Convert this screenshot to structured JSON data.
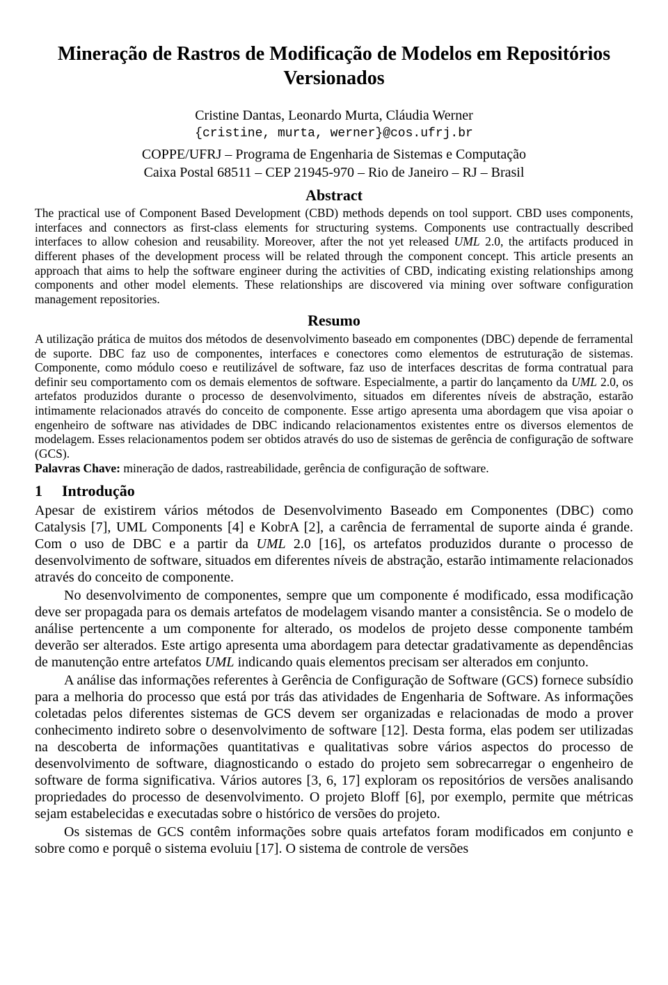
{
  "colors": {
    "text": "#000000",
    "background": "#ffffff"
  },
  "typography": {
    "body_font": "Times New Roman",
    "mono_font": "Courier New",
    "title_size_pt": 21,
    "author_size_pt": 15,
    "heading_size_pt": 16,
    "abstract_size_pt": 13,
    "body_size_pt": 15
  },
  "title": "Mineração de Rastros de Modificação de Modelos em Repositórios Versionados",
  "authors": "Cristine Dantas, Leonardo Murta, Cláudia Werner",
  "emails": "{cristine, murta, werner}@cos.ufrj.br",
  "affiliation": {
    "line1": "COPPE/UFRJ – Programa de Engenharia de Sistemas e Computação",
    "line2": "Caixa Postal 68511 – CEP 21945-970 – Rio de Janeiro – RJ – Brasil"
  },
  "abstract": {
    "heading": "Abstract",
    "text_before_italic": "The practical use of Component Based Development (CBD) methods depends on tool support. CBD uses components, interfaces and connectors as first-class elements for structuring systems. Components use contractually described interfaces to allow cohesion and reusability. Moreover, after the not yet released ",
    "italic1": "UML",
    "text_after_italic": " 2.0, the artifacts produced in different phases of the development process will be related through the component concept. This article presents an approach that aims to help the software engineer during the activities of CBD, indicating existing relationships among components and other model elements. These relationships are discovered via mining over software configuration management repositories."
  },
  "resumo": {
    "heading": "Resumo",
    "text_before_italic": "A utilização prática de muitos dos métodos de desenvolvimento baseado em componentes (DBC) depende de ferramental de suporte. DBC faz uso de componentes, interfaces e conectores como elementos de estruturação de sistemas. Componente, como módulo coeso e reutilizável de software, faz uso de interfaces descritas de forma contratual para definir seu comportamento com os demais elementos de software. Especialmente, a partir do lançamento da ",
    "italic1": "UML",
    "text_after_italic": " 2.0, os artefatos produzidos durante o processo de desenvolvimento, situados em diferentes níveis de abstração, estarão intimamente relacionados através do conceito de componente. Esse artigo apresenta uma abordagem que visa apoiar o engenheiro de software nas atividades de DBC indicando relacionamentos existentes entre os diversos elementos de modelagem. Esses relacionamentos podem ser obtidos através do uso de sistemas de gerência de configuração de software (GCS)."
  },
  "keywords": {
    "label": "Palavras Chave: ",
    "text": "mineração de dados, rastreabilidade, gerência de configuração de software."
  },
  "section1": {
    "number": "1",
    "title": "Introdução",
    "para1_before": "Apesar de existirem vários métodos de Desenvolvimento Baseado em Componentes (DBC) como Catalysis [7], UML Components [4] e KobrA [2], a carência de ferramental de suporte ainda é grande. Com o uso de DBC e a partir da ",
    "para1_italic": "UML",
    "para1_after": " 2.0 [16], os artefatos produzidos durante o processo de desenvolvimento de software, situados em diferentes níveis de abstração, estarão intimamente relacionados através do conceito de componente.",
    "para2_before": "No desenvolvimento de componentes, sempre que um componente é modificado, essa modificação deve ser propagada para os demais artefatos de modelagem visando manter a consistência. Se o modelo de análise pertencente a um componente for alterado, os modelos de projeto desse componente também deverão ser alterados. Este artigo apresenta uma abordagem para detectar gradativamente as dependências de manutenção entre artefatos ",
    "para2_italic": "UML",
    "para2_after": " indicando quais elementos precisam ser alterados em conjunto.",
    "para3": "A análise das informações referentes à Gerência de Configuração de Software (GCS) fornece subsídio para a melhoria do processo que está por trás das atividades de Engenharia de Software. As informações coletadas pelos diferentes sistemas de GCS devem ser organizadas e relacionadas de modo a prover conhecimento indireto sobre o desenvolvimento de software [12]. Desta forma, elas podem ser utilizadas na descoberta de informações quantitativas e qualitativas sobre vários aspectos do processo de desenvolvimento de software, diagnosticando o estado do projeto sem sobrecarregar o engenheiro de software de forma significativa. Vários autores [3, 6, 17] exploram os repositórios de versões analisando propriedades do processo de desenvolvimento. O projeto Bloff [6], por exemplo, permite que métricas sejam estabelecidas e executadas sobre o histórico de versões do projeto.",
    "para4": "Os sistemas de GCS contêm informações sobre quais artefatos foram modificados em conjunto e sobre como e porquê o sistema evoluiu [17]. O sistema de controle de versões"
  }
}
